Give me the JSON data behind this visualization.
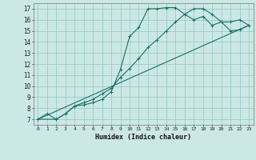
{
  "title": "",
  "xlabel": "Humidex (Indice chaleur)",
  "background_color": "#cce8e4",
  "grid_color": "#99cccc",
  "line_color": "#1a6e6a",
  "xlim": [
    -0.5,
    23.5
  ],
  "ylim": [
    6.5,
    17.5
  ],
  "xticks": [
    0,
    1,
    2,
    3,
    4,
    5,
    6,
    7,
    8,
    9,
    10,
    11,
    12,
    13,
    14,
    15,
    16,
    17,
    18,
    19,
    20,
    21,
    22,
    23
  ],
  "yticks": [
    7,
    8,
    9,
    10,
    11,
    12,
    13,
    14,
    15,
    16,
    17
  ],
  "line1_x": [
    0,
    1,
    2,
    3,
    4,
    5,
    6,
    7,
    8,
    9,
    10,
    11,
    12,
    13,
    14,
    15,
    16,
    17,
    18,
    19,
    20,
    21,
    22,
    23
  ],
  "line1_y": [
    7.0,
    7.5,
    7.0,
    7.5,
    8.2,
    8.5,
    8.8,
    9.3,
    9.8,
    10.8,
    11.6,
    12.5,
    13.5,
    14.2,
    15.0,
    15.8,
    16.5,
    17.0,
    17.0,
    16.5,
    15.8,
    15.0,
    15.1,
    15.5
  ],
  "line2_x": [
    0,
    2,
    3,
    4,
    5,
    6,
    7,
    8,
    9,
    10,
    11,
    12,
    13,
    14,
    15,
    16,
    17,
    18,
    19,
    20,
    21,
    22,
    23
  ],
  "line2_y": [
    7.0,
    7.0,
    7.5,
    8.2,
    8.3,
    8.5,
    8.8,
    9.5,
    11.5,
    14.5,
    15.3,
    17.0,
    17.0,
    17.1,
    17.1,
    16.5,
    16.0,
    16.3,
    15.5,
    15.8,
    15.8,
    16.0,
    15.5
  ],
  "line3_x": [
    0,
    23
  ],
  "line3_y": [
    7.0,
    15.5
  ]
}
